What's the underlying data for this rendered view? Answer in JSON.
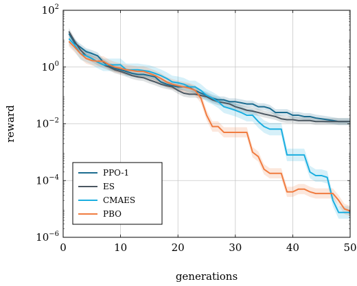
{
  "chart_data": {
    "type": "line",
    "xlabel": "generations",
    "ylabel": "reward",
    "xlim": [
      0,
      50
    ],
    "ylim": [
      1e-06,
      100
    ],
    "y_scale": "log",
    "grid": true,
    "legend_position": "bottom-left",
    "x_ticks": [
      0,
      10,
      20,
      30,
      40,
      50
    ],
    "y_ticks": [
      {
        "value": 1e-06,
        "base": "10",
        "exp": "−6"
      },
      {
        "value": 0.0001,
        "base": "10",
        "exp": "−4"
      },
      {
        "value": 0.01,
        "base": "10",
        "exp": "−2"
      },
      {
        "value": 1,
        "base": "10",
        "exp": "0"
      },
      {
        "value": 100,
        "base": "10",
        "exp": "2"
      }
    ],
    "series": [
      {
        "name": "PPO-1",
        "color": "#1a6b8f",
        "x": [
          1,
          2,
          3,
          4,
          5,
          6,
          7,
          8,
          9,
          10,
          11,
          12,
          13,
          14,
          15,
          16,
          17,
          18,
          19,
          20,
          21,
          22,
          23,
          24,
          25,
          26,
          27,
          28,
          29,
          30,
          31,
          32,
          33,
          34,
          35,
          36,
          37,
          38,
          39,
          40,
          41,
          42,
          43,
          44,
          45,
          46,
          47,
          48,
          49,
          50
        ],
        "y": [
          15,
          7,
          5,
          3.5,
          3,
          2.5,
          1.5,
          1.1,
          0.9,
          0.8,
          0.7,
          0.6,
          0.55,
          0.55,
          0.5,
          0.45,
          0.3,
          0.25,
          0.22,
          0.2,
          0.2,
          0.19,
          0.15,
          0.12,
          0.1,
          0.08,
          0.07,
          0.07,
          0.06,
          0.06,
          0.055,
          0.05,
          0.05,
          0.04,
          0.04,
          0.035,
          0.025,
          0.025,
          0.025,
          0.02,
          0.02,
          0.018,
          0.018,
          0.016,
          0.015,
          0.014,
          0.013,
          0.012,
          0.012,
          0.012
        ],
        "band": 0.12
      },
      {
        "name": "ES",
        "color": "#4a5660",
        "x": [
          1,
          2,
          3,
          4,
          5,
          6,
          7,
          8,
          9,
          10,
          11,
          12,
          13,
          14,
          15,
          16,
          17,
          18,
          19,
          20,
          21,
          22,
          23,
          24,
          25,
          26,
          27,
          28,
          29,
          30,
          31,
          32,
          33,
          34,
          35,
          36,
          37,
          38,
          39,
          40,
          41,
          42,
          43,
          44,
          45,
          46,
          47,
          48,
          49,
          50
        ],
        "y": [
          18,
          8,
          4,
          2.5,
          2,
          1.5,
          1.2,
          1,
          0.8,
          0.7,
          0.6,
          0.5,
          0.45,
          0.42,
          0.35,
          0.3,
          0.25,
          0.22,
          0.2,
          0.15,
          0.12,
          0.11,
          0.11,
          0.1,
          0.09,
          0.07,
          0.06,
          0.055,
          0.05,
          0.04,
          0.035,
          0.03,
          0.028,
          0.025,
          0.022,
          0.02,
          0.018,
          0.015,
          0.014,
          0.014,
          0.013,
          0.013,
          0.013,
          0.012,
          0.012,
          0.012,
          0.012,
          0.012,
          0.012,
          0.012
        ],
        "band": 0.12
      },
      {
        "name": "CMAES",
        "color": "#1aaee0",
        "x": [
          1,
          2,
          3,
          4,
          5,
          6,
          7,
          8,
          9,
          10,
          11,
          12,
          13,
          14,
          15,
          16,
          17,
          18,
          19,
          20,
          21,
          22,
          23,
          24,
          25,
          26,
          27,
          28,
          29,
          30,
          31,
          32,
          33,
          34,
          35,
          36,
          37,
          38,
          39,
          40,
          41,
          42,
          43,
          44,
          45,
          46,
          47,
          48,
          49,
          50
        ],
        "y": [
          10,
          6,
          3,
          2.5,
          2,
          1.5,
          1.2,
          1.2,
          1.2,
          1.2,
          0.8,
          0.8,
          0.8,
          0.75,
          0.7,
          0.6,
          0.5,
          0.4,
          0.3,
          0.28,
          0.25,
          0.2,
          0.2,
          0.15,
          0.1,
          0.08,
          0.06,
          0.04,
          0.035,
          0.03,
          0.025,
          0.02,
          0.02,
          0.012,
          0.008,
          0.0065,
          0.0065,
          0.0065,
          0.0008,
          0.0008,
          0.0008,
          0.0008,
          0.0002,
          0.00015,
          0.00015,
          0.00013,
          2e-05,
          7.5e-06,
          7.5e-06,
          7.5e-06
        ],
        "band": 0.22
      },
      {
        "name": "PBO",
        "color": "#f07b3f",
        "x": [
          1,
          2,
          3,
          4,
          5,
          6,
          7,
          8,
          9,
          10,
          11,
          12,
          13,
          14,
          15,
          16,
          17,
          18,
          19,
          20,
          21,
          22,
          23,
          24,
          25,
          26,
          27,
          28,
          29,
          30,
          31,
          32,
          33,
          34,
          35,
          36,
          37,
          38,
          39,
          40,
          41,
          42,
          43,
          44,
          45,
          46,
          47,
          48,
          49,
          50
        ],
        "y": [
          8,
          5,
          3,
          2,
          1.7,
          1.6,
          1.6,
          1.2,
          1,
          0.9,
          0.8,
          0.75,
          0.7,
          0.7,
          0.6,
          0.5,
          0.4,
          0.3,
          0.25,
          0.22,
          0.2,
          0.18,
          0.15,
          0.08,
          0.02,
          0.008,
          0.008,
          0.005,
          0.005,
          0.005,
          0.005,
          0.005,
          0.001,
          0.0007,
          0.00025,
          0.00018,
          0.00018,
          0.00018,
          4e-05,
          4e-05,
          5e-05,
          5e-05,
          4e-05,
          3.5e-05,
          3.5e-05,
          3.5e-05,
          3.5e-05,
          2e-05,
          1e-05,
          8.5e-06
        ],
        "band": 0.18
      }
    ]
  }
}
